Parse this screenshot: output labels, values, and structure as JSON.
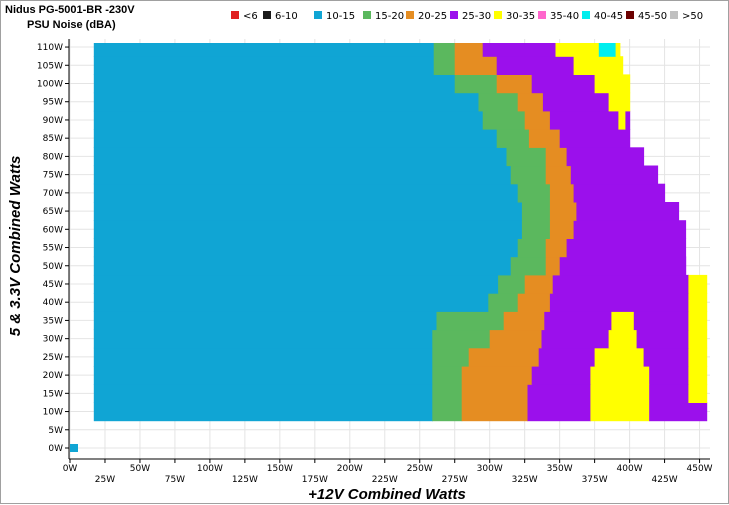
{
  "chart_data": {
    "type": "heatmap",
    "title": "Nidus PG-5001-BR -230V",
    "subtitle": "PSU Noise (dBA)",
    "xlabel": "+12V Combined Watts",
    "ylabel": "5 & 3.3V Combined Watts",
    "xlim": [
      0,
      455
    ],
    "ylim": [
      0,
      110
    ],
    "x_ticks": [
      "0W",
      "25W",
      "50W",
      "75W",
      "100W",
      "125W",
      "150W",
      "175W",
      "200W",
      "225W",
      "250W",
      "275W",
      "300W",
      "325W",
      "350W",
      "375W",
      "400W",
      "425W",
      "450W"
    ],
    "y_ticks": [
      "0W",
      "5W",
      "10W",
      "15W",
      "20W",
      "25W",
      "30W",
      "35W",
      "40W",
      "45W",
      "50W",
      "55W",
      "60W",
      "65W",
      "70W",
      "75W",
      "80W",
      "85W",
      "90W",
      "95W",
      "100W",
      "105W",
      "110W"
    ],
    "legend": [
      {
        "label": "<6",
        "color": "#e02020"
      },
      {
        "label": "6-10",
        "color": "#1a1a1a"
      },
      {
        "label": "10-15",
        "color": "#10a5d4"
      },
      {
        "label": "15-20",
        "color": "#5bb85e"
      },
      {
        "label": "20-25",
        "color": "#e58d22"
      },
      {
        "label": "25-30",
        "color": "#9b10ec"
      },
      {
        "label": "30-35",
        "color": "#ffff00"
      },
      {
        "label": "35-40",
        "color": "#ff66cc"
      },
      {
        "label": "40-45",
        "color": "#00eeee"
      },
      {
        "label": "45-50",
        "color": "#6b0000"
      },
      {
        "label": ">50",
        "color": "#c0c0c0"
      }
    ],
    "legend_position": "top-right",
    "grid": true,
    "idle_point": {
      "x": 0,
      "y": 0,
      "band": "10-15"
    },
    "rows_y_step": 5,
    "rows": [
      {
        "y": 10,
        "b": [
          [
            "10-15",
            17,
            259
          ],
          [
            "15-20",
            259,
            280
          ],
          [
            "20-25",
            280,
            327
          ],
          [
            "25-30",
            327,
            372
          ],
          [
            "30-35",
            372,
            414
          ],
          [
            "25-30",
            414,
            455
          ]
        ]
      },
      {
        "y": 15,
        "b": [
          [
            "10-15",
            17,
            259
          ],
          [
            "15-20",
            259,
            280
          ],
          [
            "20-25",
            280,
            327
          ],
          [
            "25-30",
            327,
            372
          ],
          [
            "30-35",
            372,
            414
          ],
          [
            "25-30",
            414,
            442
          ],
          [
            "30-35",
            442,
            455
          ]
        ]
      },
      {
        "y": 20,
        "b": [
          [
            "10-15",
            17,
            259
          ],
          [
            "15-20",
            259,
            280
          ],
          [
            "20-25",
            280,
            330
          ],
          [
            "25-30",
            330,
            372
          ],
          [
            "30-35",
            372,
            414
          ],
          [
            "25-30",
            414,
            442
          ],
          [
            "30-35",
            442,
            455
          ]
        ]
      },
      {
        "y": 25,
        "b": [
          [
            "10-15",
            17,
            259
          ],
          [
            "15-20",
            259,
            285
          ],
          [
            "20-25",
            285,
            335
          ],
          [
            "25-30",
            335,
            375
          ],
          [
            "30-35",
            375,
            410
          ],
          [
            "25-30",
            410,
            442
          ],
          [
            "30-35",
            442,
            455
          ]
        ]
      },
      {
        "y": 30,
        "b": [
          [
            "10-15",
            17,
            259
          ],
          [
            "15-20",
            259,
            300
          ],
          [
            "20-25",
            300,
            337
          ],
          [
            "25-30",
            337,
            385
          ],
          [
            "30-35",
            385,
            405
          ],
          [
            "25-30",
            405,
            442
          ],
          [
            "30-35",
            442,
            455
          ]
        ]
      },
      {
        "y": 35,
        "b": [
          [
            "10-15",
            17,
            262
          ],
          [
            "15-20",
            262,
            310
          ],
          [
            "20-25",
            310,
            339
          ],
          [
            "25-30",
            339,
            387
          ],
          [
            "30-35",
            387,
            403
          ],
          [
            "25-30",
            403,
            442
          ],
          [
            "30-35",
            442,
            455
          ]
        ]
      },
      {
        "y": 40,
        "b": [
          [
            "10-15",
            17,
            299
          ],
          [
            "15-20",
            299,
            320
          ],
          [
            "20-25",
            320,
            343
          ],
          [
            "25-30",
            343,
            442
          ],
          [
            "30-35",
            442,
            455
          ]
        ]
      },
      {
        "y": 45,
        "b": [
          [
            "10-15",
            17,
            306
          ],
          [
            "15-20",
            306,
            325
          ],
          [
            "20-25",
            325,
            345
          ],
          [
            "25-30",
            345,
            442
          ],
          [
            "30-35",
            442,
            455
          ]
        ]
      },
      {
        "y": 50,
        "b": [
          [
            "10-15",
            17,
            315
          ],
          [
            "15-20",
            315,
            340
          ],
          [
            "20-25",
            340,
            350
          ],
          [
            "25-30",
            350,
            440
          ]
        ]
      },
      {
        "y": 55,
        "b": [
          [
            "10-15",
            17,
            320
          ],
          [
            "15-20",
            320,
            340
          ],
          [
            "20-25",
            340,
            355
          ],
          [
            "25-30",
            355,
            440
          ]
        ]
      },
      {
        "y": 60,
        "b": [
          [
            "10-15",
            17,
            323
          ],
          [
            "15-20",
            323,
            343
          ],
          [
            "20-25",
            343,
            360
          ],
          [
            "25-30",
            360,
            440
          ]
        ]
      },
      {
        "y": 65,
        "b": [
          [
            "10-15",
            17,
            323
          ],
          [
            "15-20",
            323,
            343
          ],
          [
            "20-25",
            343,
            362
          ],
          [
            "25-30",
            362,
            435
          ]
        ]
      },
      {
        "y": 70,
        "b": [
          [
            "10-15",
            17,
            320
          ],
          [
            "15-20",
            320,
            343
          ],
          [
            "20-25",
            343,
            360
          ],
          [
            "25-30",
            360,
            425
          ]
        ]
      },
      {
        "y": 75,
        "b": [
          [
            "10-15",
            17,
            315
          ],
          [
            "15-20",
            315,
            340
          ],
          [
            "20-25",
            340,
            358
          ],
          [
            "25-30",
            358,
            420
          ]
        ]
      },
      {
        "y": 80,
        "b": [
          [
            "10-15",
            17,
            312
          ],
          [
            "15-20",
            312,
            340
          ],
          [
            "20-25",
            340,
            355
          ],
          [
            "25-30",
            355,
            410
          ]
        ]
      },
      {
        "y": 85,
        "b": [
          [
            "10-15",
            17,
            305
          ],
          [
            "15-20",
            305,
            328
          ],
          [
            "20-25",
            328,
            350
          ],
          [
            "25-30",
            350,
            400
          ]
        ]
      },
      {
        "y": 90,
        "b": [
          [
            "10-15",
            17,
            295
          ],
          [
            "15-20",
            295,
            325
          ],
          [
            "20-25",
            325,
            343
          ],
          [
            "25-30",
            343,
            392
          ],
          [
            "30-35",
            392,
            397
          ],
          [
            "25-30",
            397,
            400
          ]
        ]
      },
      {
        "y": 95,
        "b": [
          [
            "10-15",
            17,
            292
          ],
          [
            "15-20",
            292,
            320
          ],
          [
            "20-25",
            320,
            338
          ],
          [
            "25-30",
            338,
            385
          ],
          [
            "30-35",
            385,
            400
          ]
        ]
      },
      {
        "y": 100,
        "b": [
          [
            "10-15",
            17,
            275
          ],
          [
            "15-20",
            275,
            305
          ],
          [
            "20-25",
            305,
            330
          ],
          [
            "25-30",
            330,
            375
          ],
          [
            "30-35",
            375,
            400
          ]
        ]
      },
      {
        "y": 105,
        "b": [
          [
            "10-15",
            17,
            260
          ],
          [
            "15-20",
            260,
            275
          ],
          [
            "20-25",
            275,
            305
          ],
          [
            "25-30",
            305,
            360
          ],
          [
            "30-35",
            360,
            395
          ]
        ]
      },
      {
        "y": 110,
        "b": [
          [
            "10-15",
            17,
            260
          ],
          [
            "15-20",
            260,
            275
          ],
          [
            "20-25",
            275,
            295
          ],
          [
            "25-30",
            295,
            347
          ],
          [
            "30-35",
            347,
            378
          ],
          [
            "40-45",
            378,
            390
          ],
          [
            "30-35",
            390,
            393
          ]
        ]
      }
    ]
  }
}
